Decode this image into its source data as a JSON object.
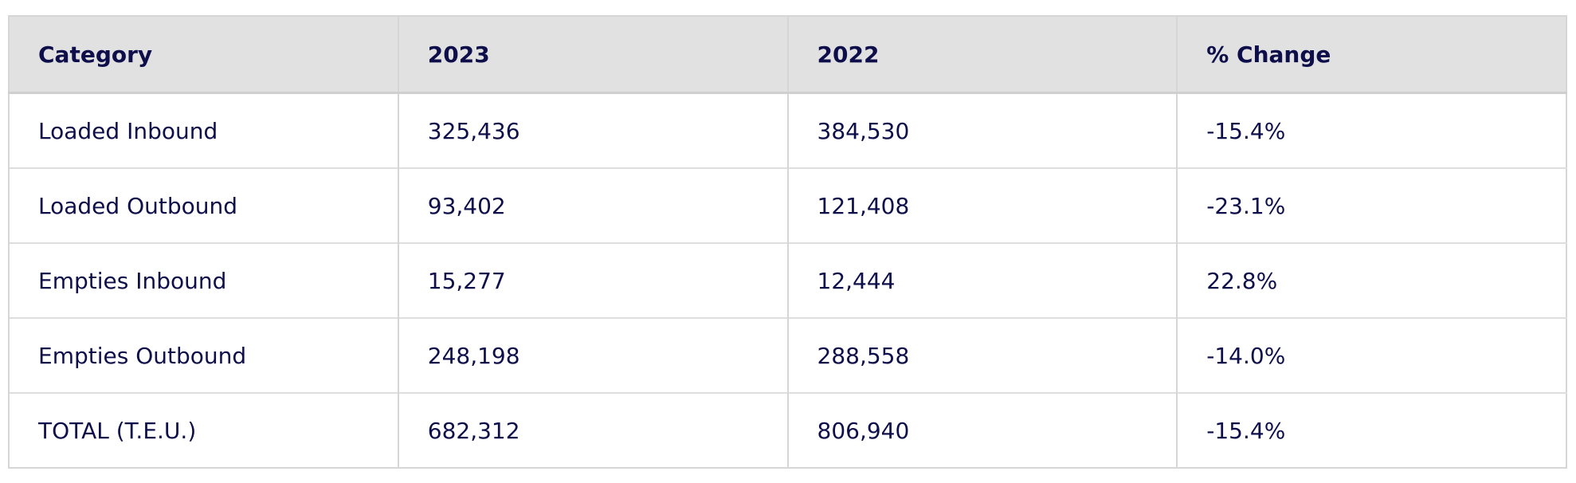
{
  "table": {
    "headers": [
      "Category",
      "2023",
      "2022",
      "% Change"
    ],
    "rows": [
      [
        "Loaded Inbound",
        "325,436",
        "384,530",
        "-15.4%"
      ],
      [
        "Loaded Outbound",
        "93,402",
        "121,408",
        "-23.1%"
      ],
      [
        "Empties Inbound",
        "15,277",
        "12,444",
        "22.8%"
      ],
      [
        "Empties Outbound",
        "248,198",
        "288,558",
        "-14.0%"
      ],
      [
        "TOTAL (T.E.U.)",
        "682,312",
        "806,940",
        "-15.4%"
      ]
    ]
  }
}
